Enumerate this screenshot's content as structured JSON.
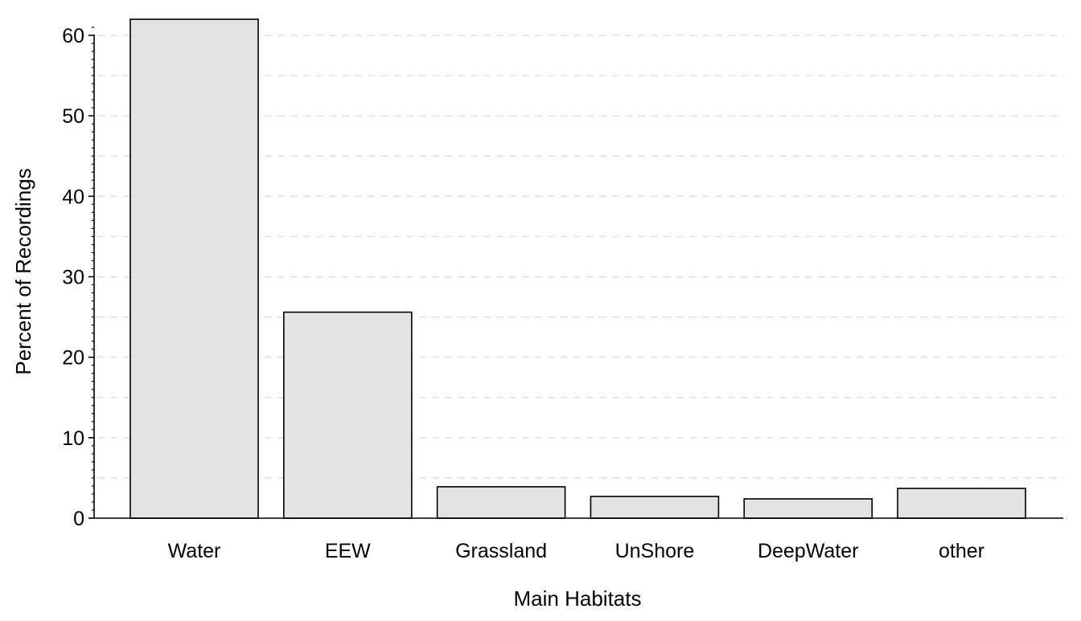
{
  "chart_data": {
    "type": "bar",
    "title": "",
    "xlabel": "Main Habitats",
    "ylabel": "Percent of Recordings",
    "categories": [
      "Water",
      "EEW",
      "Grassland",
      "UnShore",
      "DeepWater",
      "other"
    ],
    "values": [
      62.0,
      25.6,
      3.9,
      2.7,
      2.4,
      3.7
    ],
    "ylim": [
      0,
      62
    ],
    "yticks": [
      0,
      10,
      20,
      30,
      40,
      50,
      60
    ],
    "ytick_labels": [
      "0",
      "10",
      "20",
      "30",
      "40",
      "50",
      "60"
    ],
    "grid": "horizontal dashed at every 5",
    "legend": "none",
    "colors": {
      "bar_fill": "#e3e3e3",
      "bar_stroke": "#000000",
      "grid": "#e0e0e0",
      "axis": "#000000"
    }
  }
}
